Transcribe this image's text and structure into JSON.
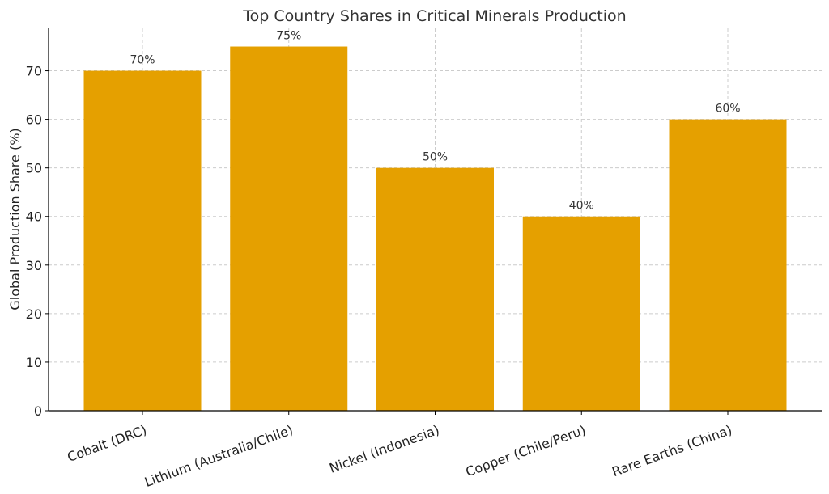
{
  "chart_data": {
    "type": "bar",
    "title": "Top Country Shares in Critical Minerals Production",
    "xlabel": "",
    "ylabel": "Global Production Share (%)",
    "categories": [
      "Cobalt (DRC)",
      "Lithium (Australia/Chile)",
      "Nickel (Indonesia)",
      "Copper (Chile/Peru)",
      "Rare Earths (China)"
    ],
    "values": [
      70,
      75,
      50,
      40,
      60
    ],
    "data_labels": [
      "70%",
      "75%",
      "50%",
      "40%",
      "60%"
    ],
    "ylim": [
      0,
      78.75
    ],
    "yticks": [
      0,
      10,
      20,
      30,
      40,
      50,
      60,
      70
    ],
    "grid": true,
    "legend": "none",
    "bar_color": "#E5A000"
  }
}
